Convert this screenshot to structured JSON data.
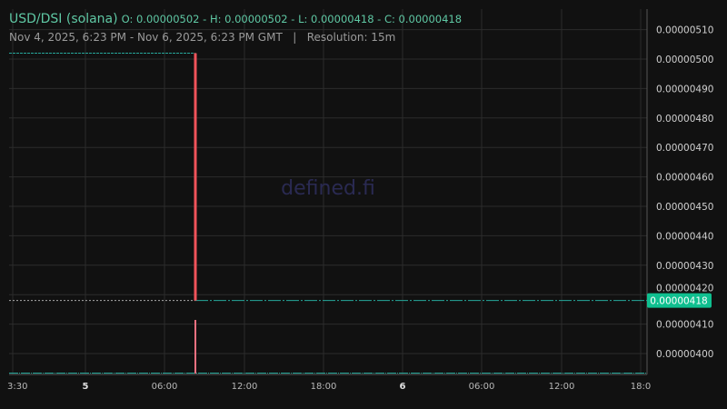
{
  "header": {
    "pair": "USD/DSI (solana)",
    "ohlc": "O: 0.00000502 - H: 0.00000502 - L: 0.00000418 - C: 0.00000418",
    "range": "Nov 4, 2025, 6:23 PM - Nov 6, 2025, 6:23 PM GMT",
    "separator": "|",
    "resolution": "Resolution: 15m"
  },
  "watermark": "defined.fi",
  "colors": {
    "up": "#26a69a",
    "down": "#f0535a",
    "volume": "#f07080",
    "last_price_bg": "#0fbf8f",
    "grid": "#2c2c2c",
    "accent": "#5fc8a4"
  },
  "chart_data": {
    "type": "candlestick",
    "ylim": [
      3.93e-06,
      5.17e-06
    ],
    "y_ticks": [
      "0.00000510",
      "0.00000500",
      "0.00000490",
      "0.00000480",
      "0.00000470",
      "0.00000460",
      "0.00000450",
      "0.00000440",
      "0.00000430",
      "0.00000420",
      "0.00000410",
      "0.00000400"
    ],
    "x_ticks": [
      {
        "label": "3:30",
        "bold": false
      },
      {
        "label": "5",
        "bold": true
      },
      {
        "label": "06:00",
        "bold": false
      },
      {
        "label": "12:00",
        "bold": false
      },
      {
        "label": "18:00",
        "bold": false
      },
      {
        "label": "6",
        "bold": true
      },
      {
        "label": "06:00",
        "bold": false
      },
      {
        "label": "12:00",
        "bold": false
      },
      {
        "label": "18:0",
        "bold": false
      }
    ],
    "candles": [
      {
        "time": "Nov 5, 2025 ~08:30",
        "open": 5.02e-06,
        "high": 5.02e-06,
        "low": 4.18e-06,
        "close": 4.18e-06
      }
    ],
    "flat_before": 5.02e-06,
    "flat_after": 4.18e-06,
    "last_price": "0.00000418"
  }
}
